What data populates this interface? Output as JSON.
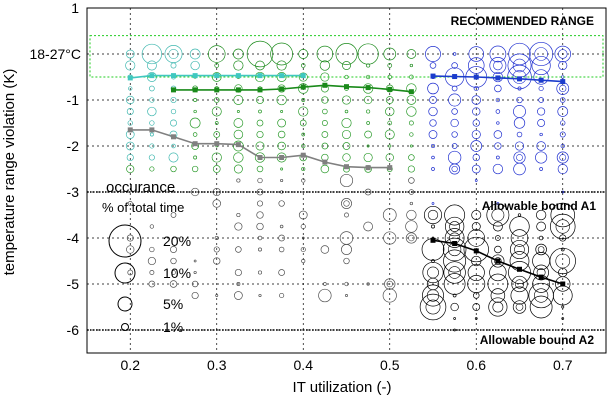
{
  "chart_data": {
    "type": "scatter",
    "title": "",
    "xlabel": "IT utilization (-)",
    "ylabel": "temperature range violation (K)",
    "xlim": [
      0.15,
      0.75
    ],
    "ylim": [
      -6.5,
      1
    ],
    "xticks": [
      0.2,
      0.3,
      0.4,
      0.5,
      0.6,
      0.7
    ],
    "xtick_labels": [
      "0.2",
      "0.3",
      "0.4",
      "0.5",
      "0.6",
      "0.7"
    ],
    "yticks": [
      1,
      -1,
      -2,
      -3,
      -4,
      -5,
      -6
    ],
    "ytick_labels": [
      "1",
      "-1",
      "-2",
      "-3",
      "-4",
      "-5",
      "-6"
    ],
    "special_ytick": {
      "value": 0,
      "label": "18-27°C"
    },
    "grid": true,
    "recommended_range": {
      "label": "RECOMMENDED RANGE",
      "ymin": -0.5,
      "ymax": 0.4,
      "color": "#22cc22"
    },
    "bounds": [
      {
        "label": "Allowable bound A1",
        "y": -3
      },
      {
        "label": "Allowable bound A2",
        "y": -6
      }
    ],
    "series": [
      {
        "color": "#40c8c0",
        "x": [
          0.2,
          0.225,
          0.25,
          0.275,
          0.3,
          0.325,
          0.35,
          0.375,
          0.4
        ],
        "y": [
          -0.52,
          -0.47,
          -0.47,
          -0.47,
          -0.47,
          -0.47,
          -0.47,
          -0.47,
          -0.47
        ]
      },
      {
        "color": "#1a8a1a",
        "x": [
          0.25,
          0.275,
          0.3,
          0.325,
          0.35,
          0.375,
          0.4,
          0.425,
          0.45,
          0.475,
          0.5,
          0.525
        ],
        "y": [
          -0.78,
          -0.78,
          -0.78,
          -0.78,
          -0.78,
          -0.76,
          -0.72,
          -0.68,
          -0.71,
          -0.73,
          -0.77,
          -0.82
        ]
      },
      {
        "color": "#1b3ccc",
        "x": [
          0.55,
          0.575,
          0.6,
          0.625,
          0.65,
          0.675,
          0.7
        ],
        "y": [
          -0.48,
          -0.49,
          -0.5,
          -0.52,
          -0.54,
          -0.57,
          -0.6
        ]
      },
      {
        "color": "#808080",
        "x": [
          0.2,
          0.225,
          0.25,
          0.275,
          0.3,
          0.325,
          0.35,
          0.375,
          0.4,
          0.425,
          0.45,
          0.475,
          0.5
        ],
        "y": [
          -1.65,
          -1.65,
          -1.8,
          -1.95,
          -1.95,
          -1.97,
          -2.25,
          -2.25,
          -2.2,
          -2.35,
          -2.45,
          -2.47,
          -2.47
        ]
      },
      {
        "color": "#000000",
        "x": [
          0.55,
          0.575,
          0.6,
          0.625,
          0.65,
          0.675,
          0.7
        ],
        "y": [
          -4.05,
          -4.12,
          -4.28,
          -4.5,
          -4.68,
          -4.85,
          -5.0
        ]
      }
    ],
    "legend": {
      "title": "occurance",
      "subtitle": "% of total time",
      "entries": [
        {
          "label": "20%",
          "percent": 20
        },
        {
          "label": "10%",
          "percent": 10
        },
        {
          "label": "5%",
          "percent": 5
        },
        {
          "label": "1%",
          "percent": 1
        }
      ]
    }
  }
}
